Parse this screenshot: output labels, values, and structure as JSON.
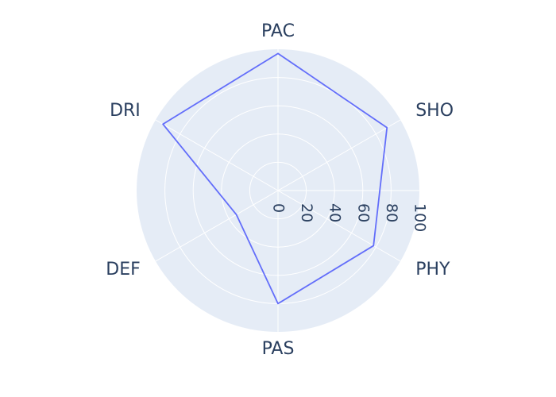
{
  "chart_data": {
    "type": "radar",
    "categories": [
      "PAC",
      "SHO",
      "PHY",
      "PAS",
      "DEF",
      "DRI"
    ],
    "values": [
      97,
      89,
      78,
      80,
      34,
      94
    ],
    "radial_range": [
      0,
      100
    ],
    "radial_ticks": [
      0,
      20,
      40,
      60,
      80,
      100
    ],
    "angular_start_direction": "top",
    "angular_rotation": "clockwise",
    "fill": "none",
    "grid": true,
    "colors": {
      "line": "#636efa",
      "background": "#e5ecf6",
      "grid": "#ffffff",
      "text": "#2a3f5f"
    }
  }
}
